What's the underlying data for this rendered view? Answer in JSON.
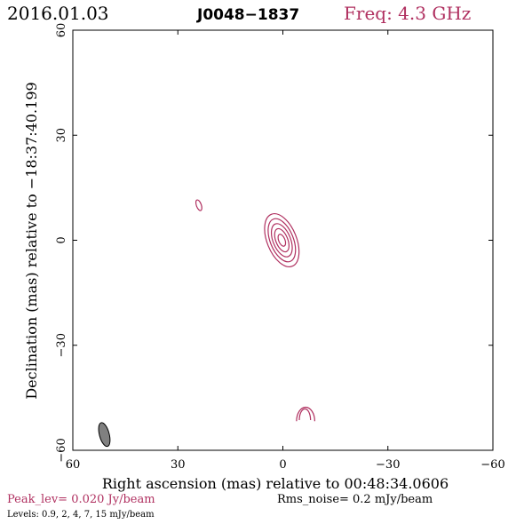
{
  "header": {
    "date": "2016.01.03",
    "source": "J0048−1837",
    "frequency": "Freq: 4.3 GHz"
  },
  "footer": {
    "peak_level": "Peak_lev=  0.020 Jy/beam",
    "rms_noise": "Rms_noise=  0.2 mJy/beam",
    "levels": "Levels: 0.9,   2,   4,   7,  15 mJy/beam"
  },
  "colors": {
    "accent": "#b03060",
    "contour": "#b03060",
    "beam_fill": "#808080"
  },
  "chart_data": {
    "type": "contour",
    "title": "",
    "xlabel": "Right ascension (mas) relative to 00:48:34.0606",
    "ylabel": "Declination (mas) relative to −18:37:40.199",
    "xlim": [
      60,
      -60
    ],
    "ylim": [
      -60,
      60
    ],
    "x_ticks": [
      60,
      30,
      0,
      -30,
      -60
    ],
    "y_ticks": [
      -60,
      -30,
      0,
      30,
      60
    ],
    "x_tick_labels": [
      "60",
      "30",
      "0",
      "−30",
      "−60"
    ],
    "y_tick_labels": [
      "−60",
      "−30",
      "0",
      "30",
      "60"
    ],
    "contour_levels_mJy": [
      0.9,
      2,
      4,
      7,
      15
    ],
    "peak_Jy_per_beam": 0.02,
    "components": [
      {
        "name": "core-contour-1",
        "x": 0.3,
        "y": 0.0,
        "rx": 4.2,
        "ry": 8.0,
        "angle": -22
      },
      {
        "name": "core-contour-2",
        "x": 0.3,
        "y": 0.0,
        "rx": 3.3,
        "ry": 6.5,
        "angle": -22
      },
      {
        "name": "core-contour-3",
        "x": 0.3,
        "y": 0.0,
        "rx": 2.5,
        "ry": 5.0,
        "angle": -22
      },
      {
        "name": "core-contour-4",
        "x": 0.3,
        "y": 0.0,
        "rx": 1.7,
        "ry": 3.5,
        "angle": -22
      },
      {
        "name": "core-contour-5",
        "x": 0.3,
        "y": 0.0,
        "rx": 0.9,
        "ry": 1.8,
        "angle": -22
      },
      {
        "name": "north-knot-contour",
        "x": 24.0,
        "y": 10.0,
        "rx": 0.7,
        "ry": 1.6,
        "angle": -20
      }
    ],
    "arcs": [
      {
        "name": "south-arc-outer",
        "x": -6.5,
        "y": -49.5,
        "rx": 2.6,
        "ry": 4.0
      },
      {
        "name": "south-arc-inner",
        "x": -6.3,
        "y": -49.6,
        "rx": 1.6,
        "ry": 3.2
      }
    ],
    "beam": {
      "x": 51.0,
      "y": -55.5,
      "major_mas": 7.0,
      "minor_mas": 2.8,
      "pa_deg": -15
    }
  }
}
